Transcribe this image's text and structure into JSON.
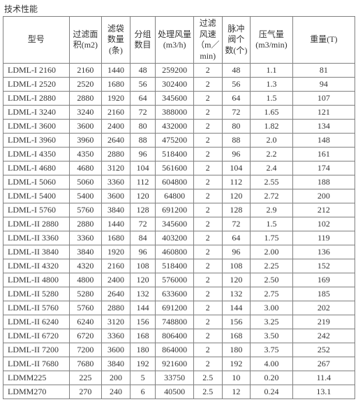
{
  "title": "技术性能",
  "columns": [
    "型号",
    "过滤面积(m2)",
    "滤袋数量(条)",
    "分组数目",
    "处理风量(m3/h)",
    "过滤风速（m／min)",
    "脉冲阀个数(个)",
    "压气量(m3/min)",
    "重量(T)"
  ],
  "rows": [
    [
      "LDML-I 2160",
      "2160",
      "1440",
      "48",
      "259200",
      "2",
      "48",
      "1.1",
      "81"
    ],
    [
      "LDML-I 2520",
      "2520",
      "1680",
      "56",
      "302400",
      "2",
      "56",
      "1.3",
      "94"
    ],
    [
      "LDML-I 2880",
      "2880",
      "1920",
      "64",
      "345600",
      "2",
      "64",
      "1.5",
      "107"
    ],
    [
      "LDML-I 3240",
      "3240",
      "2160",
      "72",
      "388000",
      "2",
      "72",
      "1.65",
      "121"
    ],
    [
      "LDML-I 3600",
      "3600",
      "2400",
      "80",
      "432000",
      "2",
      "80",
      "1.82",
      "134"
    ],
    [
      "LDML-I 3960",
      "3960",
      "2640",
      "88",
      "475200",
      "2",
      "88",
      "2.0",
      "148"
    ],
    [
      "LDML-I 4350",
      "4350",
      "2880",
      "96",
      "518400",
      "2",
      "96",
      "2.2",
      "161"
    ],
    [
      "LDML-I 4680",
      "4680",
      "3120",
      "104",
      "561600",
      "2",
      "104",
      "2.4",
      "174"
    ],
    [
      "LDML-I 5060",
      "5060",
      "3360",
      "112",
      "604800",
      "2",
      "112",
      "2.55",
      "188"
    ],
    [
      "LDML-I 5400",
      "5400",
      "3600",
      "120",
      "64800",
      "2",
      "120",
      "2.72",
      "200"
    ],
    [
      "LDML-I 5760",
      "5760",
      "3840",
      "128",
      "691200",
      "2",
      "128",
      "2.9",
      "212"
    ],
    [
      "LDML-II 2880",
      "2880",
      "1440",
      "72",
      "345600",
      "2",
      "72",
      "1.5",
      "102"
    ],
    [
      "LDML-II 3360",
      "3360",
      "1680",
      "84",
      "403200",
      "2",
      "64",
      "1.75",
      "119"
    ],
    [
      "LDML-II 3840",
      "3840",
      "1920",
      "96",
      "460800",
      "2",
      "96",
      "2.00",
      "136"
    ],
    [
      "LDML-II 4320",
      "4320",
      "2160",
      "108",
      "518400",
      "2",
      "108",
      "2.25",
      "152"
    ],
    [
      "LDML-II 4800",
      "4800",
      "2400",
      "120",
      "576000",
      "2",
      "120",
      "2.50",
      "169"
    ],
    [
      "LDML-II 5280",
      "5280",
      "2640",
      "132",
      "633600",
      "2",
      "132",
      "2.75",
      "185"
    ],
    [
      "LDML-II 5760",
      "5760",
      "2880",
      "144",
      "691200",
      "2",
      "144",
      "3.00",
      "202"
    ],
    [
      "LDML-II 6240",
      "6240",
      "3120",
      "156",
      "748800",
      "2",
      "156",
      "3.25",
      "219"
    ],
    [
      "LDML-II 6720",
      "6720",
      "3360",
      "168",
      "806400",
      "2",
      "168",
      "3.50",
      "242"
    ],
    [
      "LDML-II 7200",
      "7200",
      "3600",
      "180",
      "864000",
      "2",
      "180",
      "3.75",
      "252"
    ],
    [
      "LDML-II 7680",
      "7680",
      "3840",
      "192",
      "921600",
      "2",
      "192",
      "4.00",
      "267"
    ],
    [
      "LDMM225",
      "225",
      "200",
      "5",
      "33750",
      "2.5",
      "10",
      "0.20",
      "11.4"
    ],
    [
      "LDMM270",
      "270",
      "240",
      "6",
      "40500",
      "2.5",
      "12",
      "0.24",
      "13.1"
    ]
  ]
}
